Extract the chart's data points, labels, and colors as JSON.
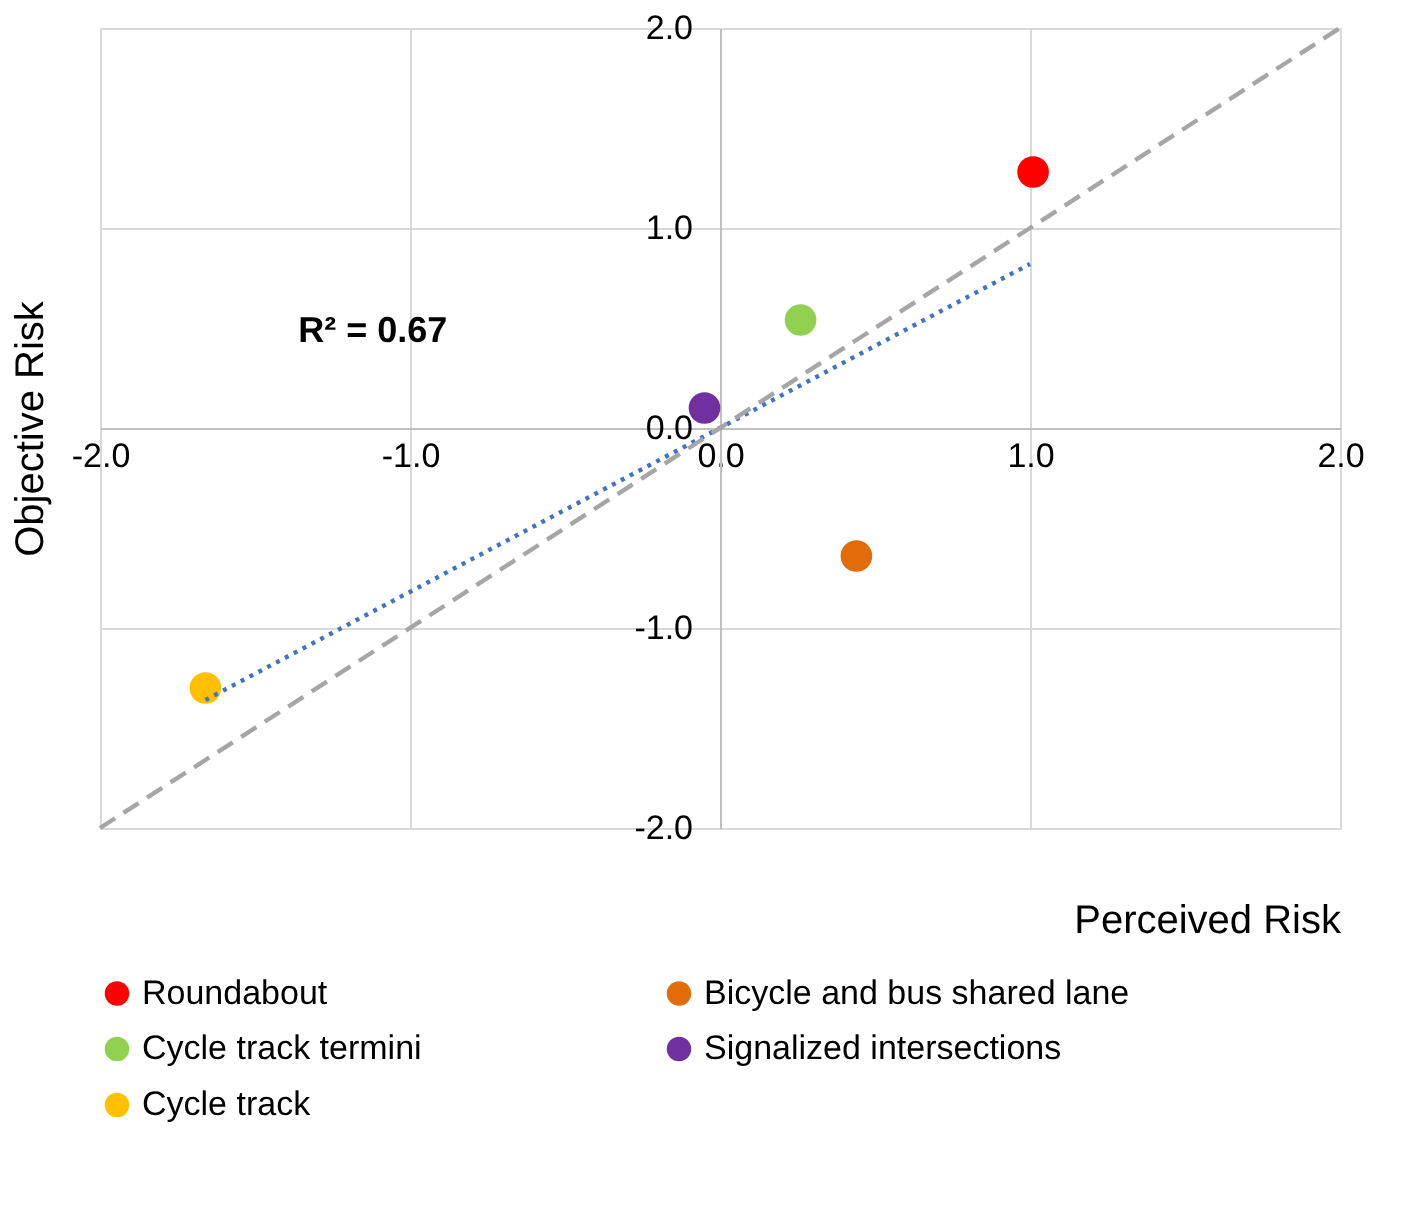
{
  "chart_data": {
    "type": "scatter",
    "xlabel": "Perceived Risk",
    "ylabel": "Objective Risk",
    "xlim": [
      -2.0,
      2.0
    ],
    "ylim": [
      -2.0,
      2.0
    ],
    "xticks": [
      {
        "value": -2,
        "label": "-2.0"
      },
      {
        "value": -1,
        "label": "-1.0"
      },
      {
        "value": 0,
        "label": "0.0"
      },
      {
        "value": 1,
        "label": "1.0"
      },
      {
        "value": 2,
        "label": "2.0"
      }
    ],
    "yticks": [
      {
        "value": -2,
        "label": "-2.0"
      },
      {
        "value": -1,
        "label": "-1.0"
      },
      {
        "value": 0,
        "label": "0.0"
      },
      {
        "value": 1,
        "label": "1.0"
      },
      {
        "value": 2,
        "label": "2.0"
      }
    ],
    "grid": true,
    "legend": "bottom",
    "marker": "circle",
    "annotations": [
      "R² = 0.67"
    ],
    "series": [
      {
        "name": "Roundabout",
        "color": "#ff0000",
        "x": [
          1.01
        ],
        "values": [
          1.28
        ]
      },
      {
        "name": "Bicycle and bus shared lane",
        "color": "#e36c0a",
        "x": [
          0.44
        ],
        "values": [
          -0.64
        ]
      },
      {
        "name": "Cycle track termini",
        "color": "#92d050",
        "x": [
          0.26
        ],
        "values": [
          0.54
        ]
      },
      {
        "name": "Signalized intersections",
        "color": "#7030a0",
        "x": [
          -0.05
        ],
        "values": [
          0.1
        ]
      },
      {
        "name": "Cycle track",
        "color": "#ffc000",
        "x": [
          -1.66
        ],
        "values": [
          -1.3
        ]
      },
      {
        "type": "line",
        "color": "#4472c4",
        "line_style": "dotted",
        "marker": "none",
        "x": [
          -1.66,
          1.0
        ],
        "values": [
          -1.36,
          0.82
        ]
      },
      {
        "type": "line",
        "color": "#a6a6a6",
        "line_style": "dashed",
        "marker": "none",
        "x": [
          -2.0,
          2.0
        ],
        "values": [
          -2.0,
          2.0
        ]
      }
    ]
  }
}
